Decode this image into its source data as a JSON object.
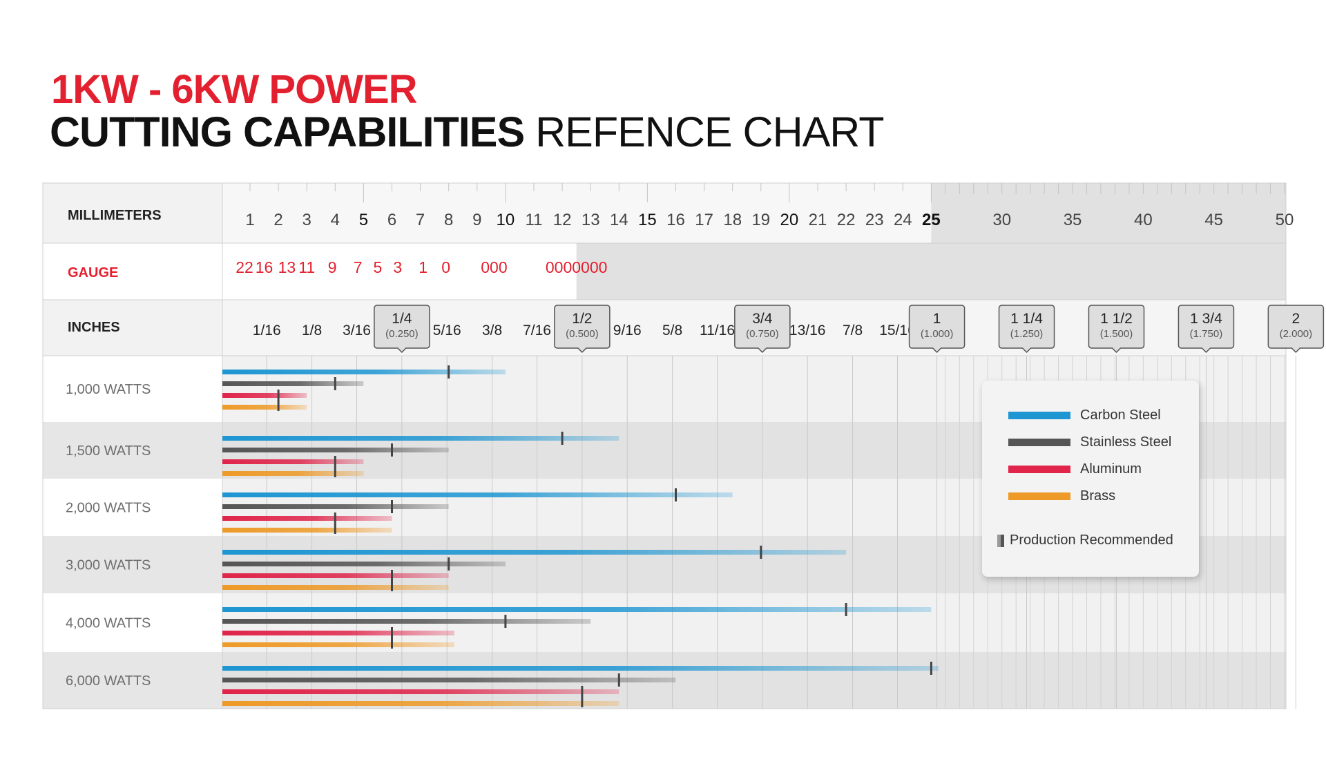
{
  "title": {
    "line1": "1KW - 6KW POWER",
    "line2_bold": "CUTTING CAPABILITIES",
    "line2_light": "REFENCE CHART"
  },
  "row_labels": {
    "millimeters": "MILLIMETERS",
    "gauge": "GAUGE",
    "inches": "INCHES"
  },
  "millimeter_ticks": [
    "1",
    "2",
    "3",
    "4",
    "5",
    "6",
    "7",
    "8",
    "9",
    "10",
    "11",
    "12",
    "13",
    "14",
    "15",
    "16",
    "17",
    "18",
    "19",
    "20",
    "21",
    "22",
    "23",
    "24",
    "25",
    "30",
    "35",
    "40",
    "45",
    "50"
  ],
  "gauge_ticks": [
    {
      "label": "22",
      "mm": 0.8
    },
    {
      "label": "16",
      "mm": 1.5
    },
    {
      "label": "13",
      "mm": 2.3
    },
    {
      "label": "11",
      "mm": 3.0
    },
    {
      "label": "9",
      "mm": 3.9
    },
    {
      "label": "7",
      "mm": 4.8
    },
    {
      "label": "5",
      "mm": 5.5
    },
    {
      "label": "3",
      "mm": 6.2
    },
    {
      "label": "1",
      "mm": 7.1
    },
    {
      "label": "0",
      "mm": 7.9
    },
    {
      "label": "000",
      "mm": 9.6
    },
    {
      "label": "0000000",
      "mm": 12.5
    }
  ],
  "inch_ticks": [
    {
      "label": "1/16",
      "mm": 1.59
    },
    {
      "label": "1/8",
      "mm": 3.18
    },
    {
      "label": "3/16",
      "mm": 4.76
    },
    {
      "label": "1/4",
      "sub": "(0.250)",
      "mm": 6.35,
      "boxed": true
    },
    {
      "label": "5/16",
      "mm": 7.94
    },
    {
      "label": "3/8",
      "mm": 9.53
    },
    {
      "label": "7/16",
      "mm": 11.11
    },
    {
      "label": "1/2",
      "sub": "(0.500)",
      "mm": 12.7,
      "boxed": true
    },
    {
      "label": "9/16",
      "mm": 14.29
    },
    {
      "label": "5/8",
      "mm": 15.88
    },
    {
      "label": "11/16",
      "mm": 17.46
    },
    {
      "label": "3/4",
      "sub": "(0.750)",
      "mm": 19.05,
      "boxed": true
    },
    {
      "label": "13/16",
      "mm": 20.64
    },
    {
      "label": "7/8",
      "mm": 22.23
    },
    {
      "label": "15/16",
      "mm": 23.81
    },
    {
      "label": "1",
      "sub": "(1.000)",
      "mm": 25.4,
      "boxed": true
    },
    {
      "label": "1 1/4",
      "sub": "(1.250)",
      "mm": 31.75,
      "boxed": true
    },
    {
      "label": "1 1/2",
      "sub": "(1.500)",
      "mm": 38.1,
      "boxed": true
    },
    {
      "label": "1 3/4",
      "sub": "(1.750)",
      "mm": 44.45,
      "boxed": true
    },
    {
      "label": "2",
      "sub": "(2.000)",
      "mm": 50.8,
      "boxed": true
    }
  ],
  "chart_data": {
    "type": "bar",
    "orientation": "horizontal",
    "title": "1KW - 6KW POWER CUTTING CAPABILITIES REFENCE CHART",
    "xlabel": "MILLIMETERS",
    "x_scale": "piecewise linear (1 mm steps to 25 mm, 5 mm steps 25–50 mm)",
    "xlim": [
      0,
      50
    ],
    "categories": [
      "1,000 WATTS",
      "1,500 WATTS",
      "2,000 WATTS",
      "3,000 WATTS",
      "4,000 WATTS",
      "6,000 WATTS"
    ],
    "series": [
      {
        "name": "Carbon Steel",
        "color": "#1e96d2",
        "max_mm": [
          10,
          14,
          18,
          22,
          25,
          25.5
        ],
        "production_recommended_mm": [
          8,
          12,
          16,
          19,
          22,
          25
        ]
      },
      {
        "name": "Stainless Steel",
        "color": "#555555",
        "max_mm": [
          5,
          8,
          8,
          10,
          13,
          16
        ],
        "production_recommended_mm": [
          4,
          6,
          6,
          8,
          10,
          14
        ]
      },
      {
        "name": "Aluminum",
        "color": "#e0244a",
        "max_mm": [
          3,
          5,
          6,
          8,
          8.2,
          14
        ],
        "production_recommended_mm": [
          2,
          4,
          4,
          6,
          6,
          12.7
        ]
      },
      {
        "name": "Brass",
        "color": "#ee9a28",
        "max_mm": [
          3,
          5,
          6,
          8,
          8.2,
          14
        ],
        "production_recommended_mm": [
          2,
          4,
          4,
          6,
          6,
          12.7
        ]
      }
    ],
    "legend_position": "right",
    "grid": true
  },
  "legend": {
    "items": [
      {
        "label": "Carbon Steel",
        "color": "#1e96d2"
      },
      {
        "label": "Stainless Steel",
        "color": "#555555"
      },
      {
        "label": "Aluminum",
        "color": "#e0244a"
      },
      {
        "label": "Brass",
        "color": "#ee9a28"
      }
    ],
    "production_label": "Production Recommended"
  }
}
